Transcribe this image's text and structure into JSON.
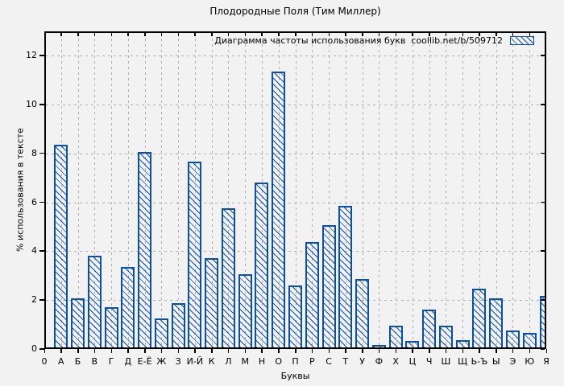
{
  "window": {
    "background": "#f2f2f2"
  },
  "chart_data": {
    "type": "bar",
    "title": "Плодородные Поля (Тим Миллер)",
    "legend": {
      "label": "Диаграмма частоты использования букв  coollib.net/b/509712",
      "position": "top-right",
      "swatch": "blue-hatched-box"
    },
    "xlabel": "Буквы",
    "ylabel": "% использования в тексте",
    "x_origin_label": "0",
    "categories": [
      "А",
      "Б",
      "В",
      "Г",
      "Д",
      "Е-Ё",
      "Ж",
      "З",
      "И-Й",
      "К",
      "Л",
      "М",
      "Н",
      "О",
      "П",
      "Р",
      "С",
      "Т",
      "У",
      "Ф",
      "Х",
      "Ц",
      "Ч",
      "Ш",
      "Щ",
      "Ь-Ъ",
      "Ы",
      "Э",
      "Ю",
      "Я"
    ],
    "values": [
      8.3,
      2.0,
      3.75,
      1.65,
      3.3,
      8.0,
      1.2,
      1.8,
      7.6,
      3.65,
      5.7,
      3.0,
      6.75,
      11.3,
      2.55,
      4.3,
      5.0,
      5.8,
      2.8,
      0.1,
      0.9,
      0.25,
      1.55,
      0.9,
      0.3,
      2.4,
      2.0,
      0.7,
      0.6,
      2.1
    ],
    "y_ticks": [
      0,
      2,
      4,
      6,
      8,
      10,
      12
    ],
    "ylim": [
      0,
      13
    ],
    "xlim_note": "last bar (Я) clipped by right frame",
    "grid": true,
    "bar_style": "diagonal-hatch",
    "colors": {
      "bar": "#0b4fad",
      "grid": "#aeaeae",
      "frame": "#000000",
      "text": "#000000",
      "background": "#f2f2f2"
    }
  }
}
